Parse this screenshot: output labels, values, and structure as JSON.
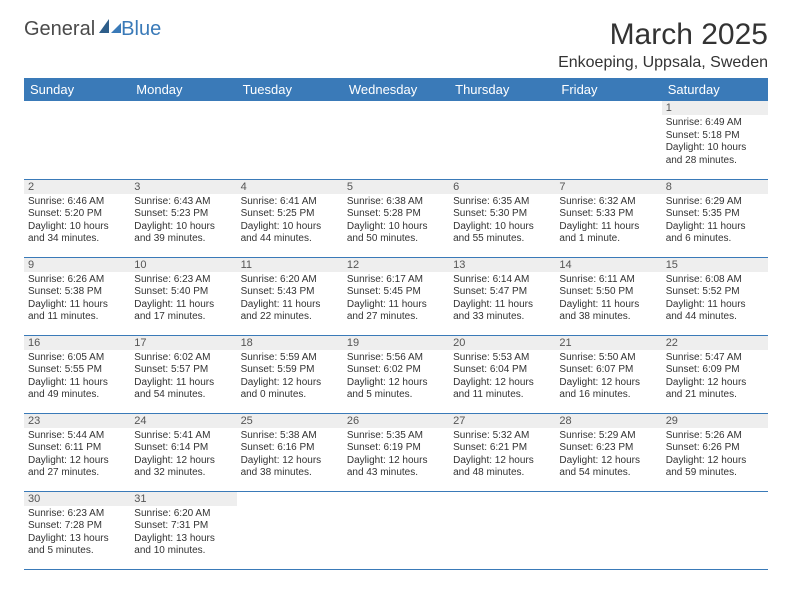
{
  "logo": {
    "text1": "General",
    "text2": "Blue"
  },
  "title": "March 2025",
  "location": "Enkoeping, Uppsala, Sweden",
  "colors": {
    "header_bg": "#3a7ab8",
    "header_fg": "#ffffff",
    "daynum_bg": "#eeeeee",
    "row_border": "#3a7ab8"
  },
  "weekdays": [
    "Sunday",
    "Monday",
    "Tuesday",
    "Wednesday",
    "Thursday",
    "Friday",
    "Saturday"
  ],
  "weeks": [
    [
      null,
      null,
      null,
      null,
      null,
      null,
      {
        "n": "1",
        "sr": "6:49 AM",
        "ss": "5:18 PM",
        "dl": "10 hours and 28 minutes."
      }
    ],
    [
      {
        "n": "2",
        "sr": "6:46 AM",
        "ss": "5:20 PM",
        "dl": "10 hours and 34 minutes."
      },
      {
        "n": "3",
        "sr": "6:43 AM",
        "ss": "5:23 PM",
        "dl": "10 hours and 39 minutes."
      },
      {
        "n": "4",
        "sr": "6:41 AM",
        "ss": "5:25 PM",
        "dl": "10 hours and 44 minutes."
      },
      {
        "n": "5",
        "sr": "6:38 AM",
        "ss": "5:28 PM",
        "dl": "10 hours and 50 minutes."
      },
      {
        "n": "6",
        "sr": "6:35 AM",
        "ss": "5:30 PM",
        "dl": "10 hours and 55 minutes."
      },
      {
        "n": "7",
        "sr": "6:32 AM",
        "ss": "5:33 PM",
        "dl": "11 hours and 1 minute."
      },
      {
        "n": "8",
        "sr": "6:29 AM",
        "ss": "5:35 PM",
        "dl": "11 hours and 6 minutes."
      }
    ],
    [
      {
        "n": "9",
        "sr": "6:26 AM",
        "ss": "5:38 PM",
        "dl": "11 hours and 11 minutes."
      },
      {
        "n": "10",
        "sr": "6:23 AM",
        "ss": "5:40 PM",
        "dl": "11 hours and 17 minutes."
      },
      {
        "n": "11",
        "sr": "6:20 AM",
        "ss": "5:43 PM",
        "dl": "11 hours and 22 minutes."
      },
      {
        "n": "12",
        "sr": "6:17 AM",
        "ss": "5:45 PM",
        "dl": "11 hours and 27 minutes."
      },
      {
        "n": "13",
        "sr": "6:14 AM",
        "ss": "5:47 PM",
        "dl": "11 hours and 33 minutes."
      },
      {
        "n": "14",
        "sr": "6:11 AM",
        "ss": "5:50 PM",
        "dl": "11 hours and 38 minutes."
      },
      {
        "n": "15",
        "sr": "6:08 AM",
        "ss": "5:52 PM",
        "dl": "11 hours and 44 minutes."
      }
    ],
    [
      {
        "n": "16",
        "sr": "6:05 AM",
        "ss": "5:55 PM",
        "dl": "11 hours and 49 minutes."
      },
      {
        "n": "17",
        "sr": "6:02 AM",
        "ss": "5:57 PM",
        "dl": "11 hours and 54 minutes."
      },
      {
        "n": "18",
        "sr": "5:59 AM",
        "ss": "5:59 PM",
        "dl": "12 hours and 0 minutes."
      },
      {
        "n": "19",
        "sr": "5:56 AM",
        "ss": "6:02 PM",
        "dl": "12 hours and 5 minutes."
      },
      {
        "n": "20",
        "sr": "5:53 AM",
        "ss": "6:04 PM",
        "dl": "12 hours and 11 minutes."
      },
      {
        "n": "21",
        "sr": "5:50 AM",
        "ss": "6:07 PM",
        "dl": "12 hours and 16 minutes."
      },
      {
        "n": "22",
        "sr": "5:47 AM",
        "ss": "6:09 PM",
        "dl": "12 hours and 21 minutes."
      }
    ],
    [
      {
        "n": "23",
        "sr": "5:44 AM",
        "ss": "6:11 PM",
        "dl": "12 hours and 27 minutes."
      },
      {
        "n": "24",
        "sr": "5:41 AM",
        "ss": "6:14 PM",
        "dl": "12 hours and 32 minutes."
      },
      {
        "n": "25",
        "sr": "5:38 AM",
        "ss": "6:16 PM",
        "dl": "12 hours and 38 minutes."
      },
      {
        "n": "26",
        "sr": "5:35 AM",
        "ss": "6:19 PM",
        "dl": "12 hours and 43 minutes."
      },
      {
        "n": "27",
        "sr": "5:32 AM",
        "ss": "6:21 PM",
        "dl": "12 hours and 48 minutes."
      },
      {
        "n": "28",
        "sr": "5:29 AM",
        "ss": "6:23 PM",
        "dl": "12 hours and 54 minutes."
      },
      {
        "n": "29",
        "sr": "5:26 AM",
        "ss": "6:26 PM",
        "dl": "12 hours and 59 minutes."
      }
    ],
    [
      {
        "n": "30",
        "sr": "6:23 AM",
        "ss": "7:28 PM",
        "dl": "13 hours and 5 minutes."
      },
      {
        "n": "31",
        "sr": "6:20 AM",
        "ss": "7:31 PM",
        "dl": "13 hours and 10 minutes."
      },
      null,
      null,
      null,
      null,
      null
    ]
  ],
  "labels": {
    "sunrise": "Sunrise: ",
    "sunset": "Sunset: ",
    "daylight": "Daylight: "
  }
}
